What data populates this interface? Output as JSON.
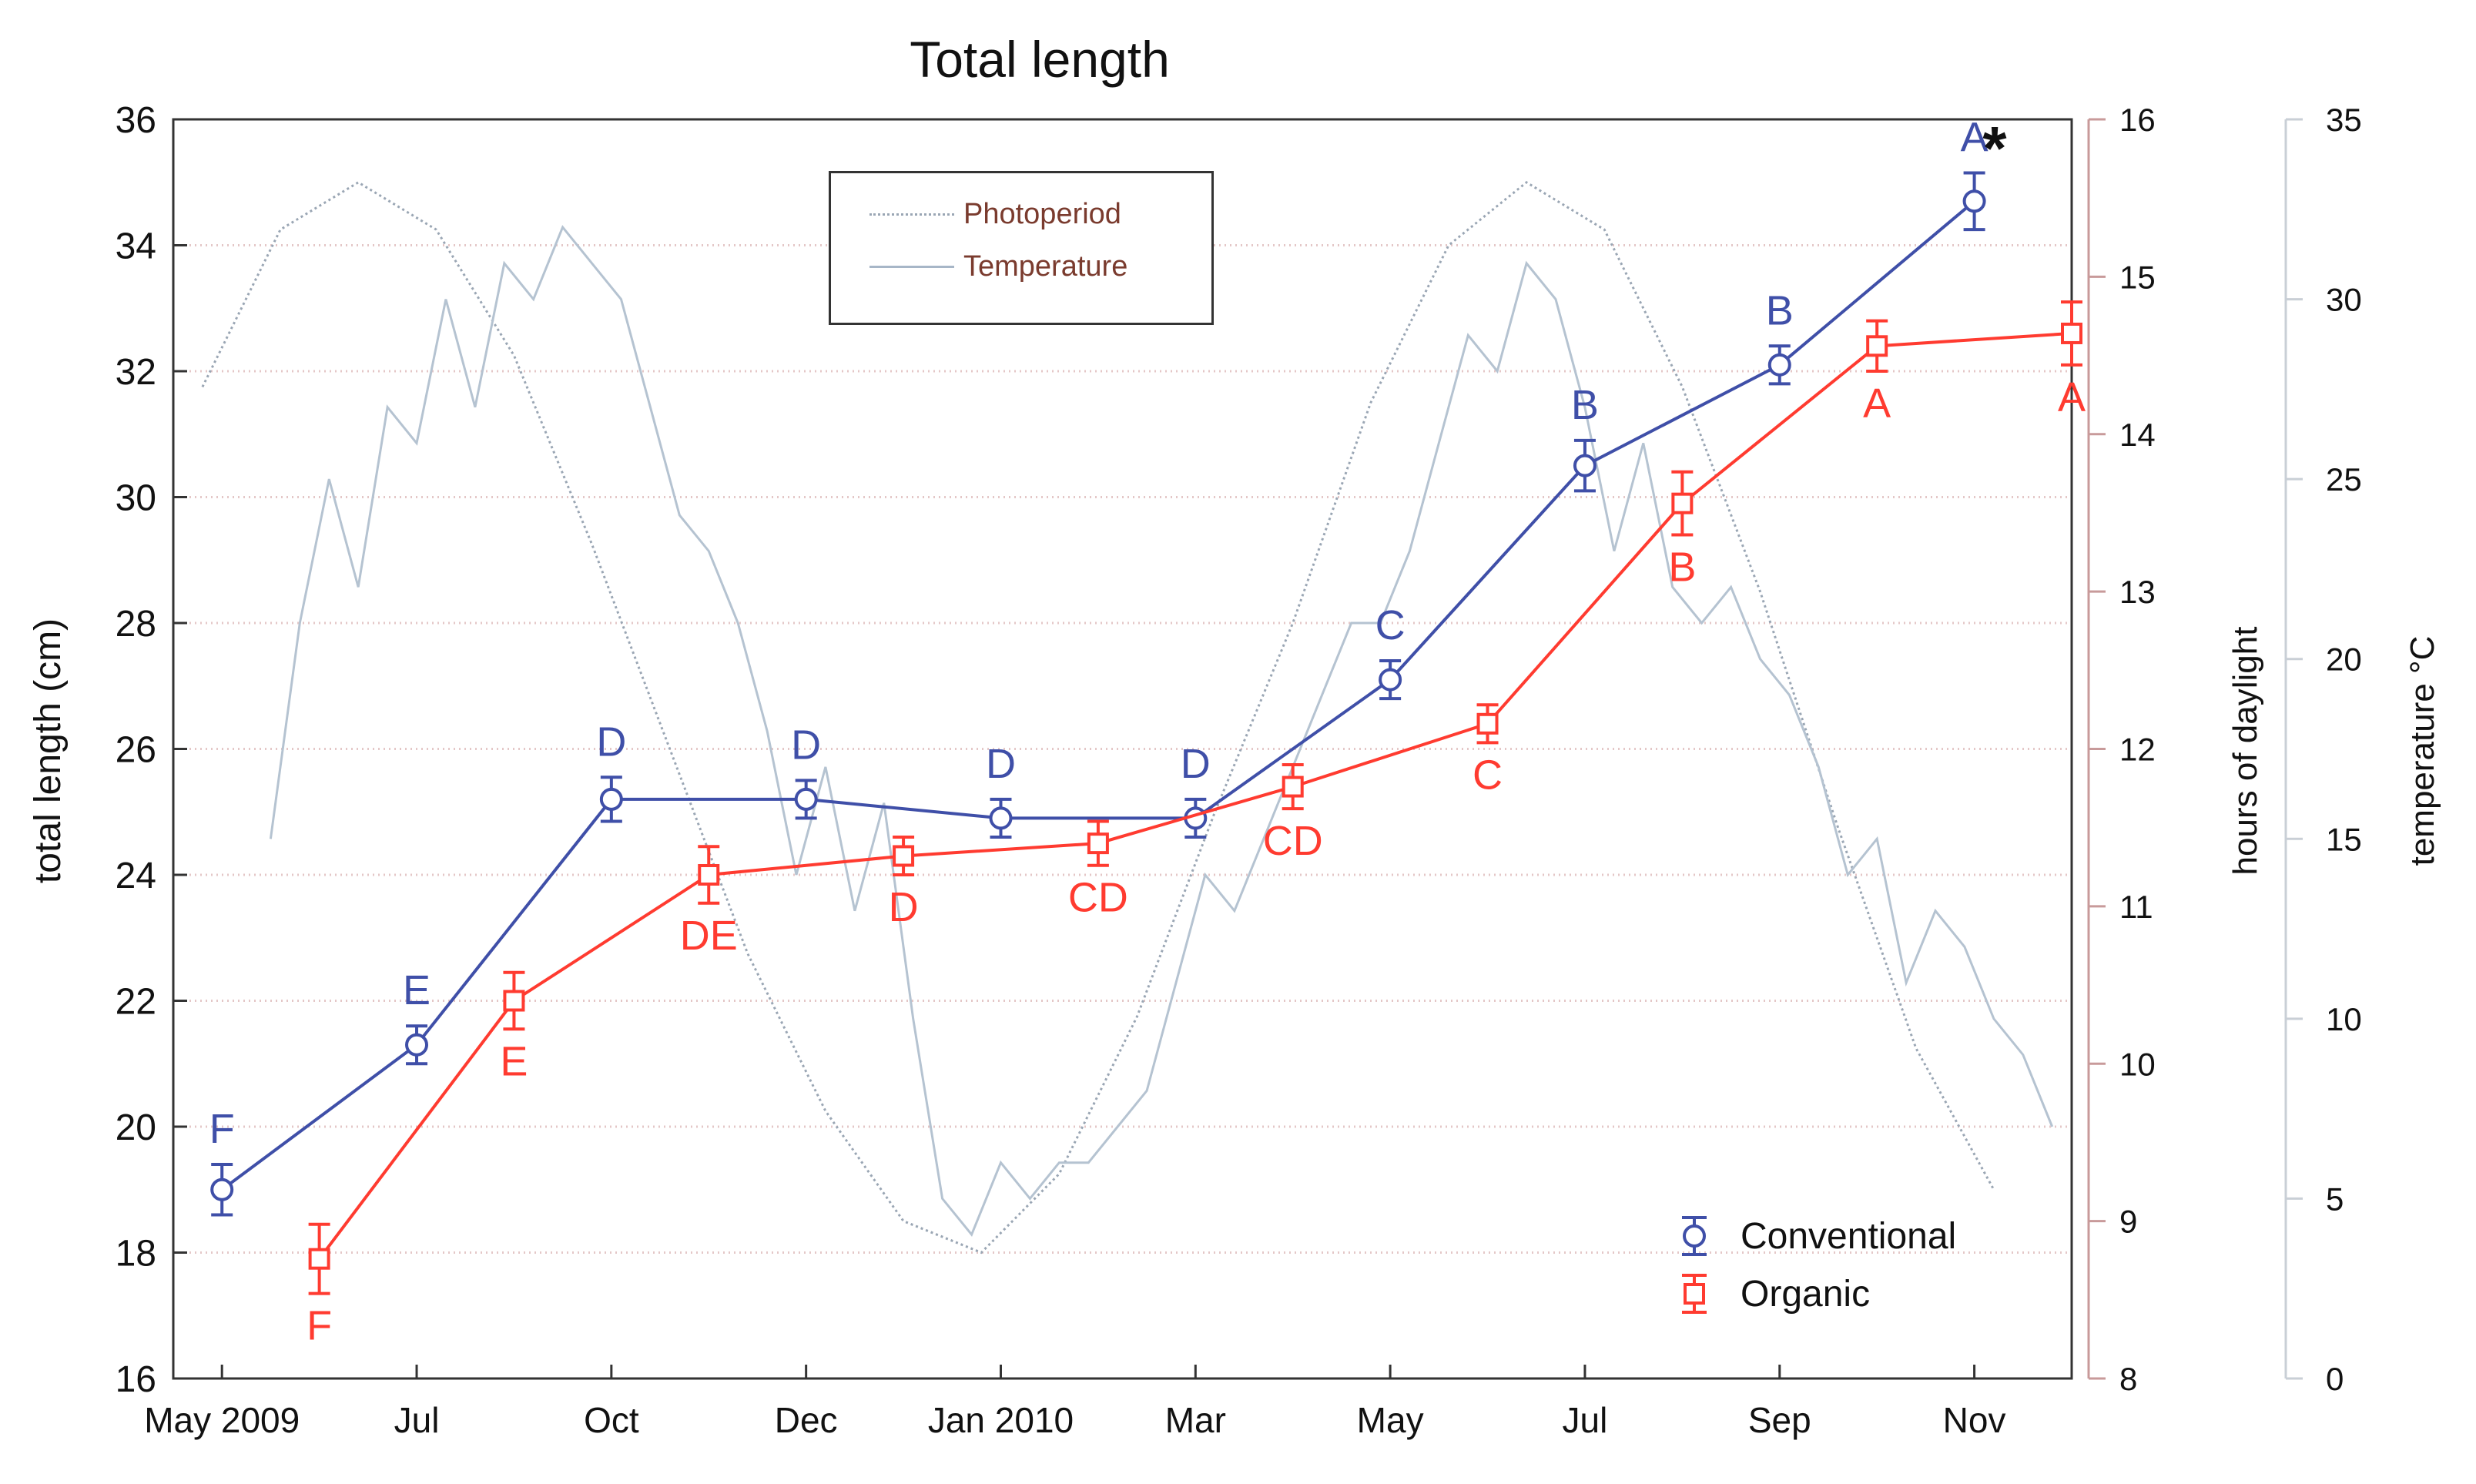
{
  "chart_data": {
    "type": "line",
    "title": "Total length",
    "ylabel": "total length (cm)",
    "ylabel_right1": "hours of daylight",
    "ylabel_right2": "temperature °C",
    "ylim": [
      16,
      36
    ],
    "ylim_right1": [
      8,
      16
    ],
    "ylim_right2": [
      0,
      35
    ],
    "yticks": [
      "16",
      "18",
      "20",
      "22",
      "24",
      "26",
      "28",
      "30",
      "32",
      "34",
      "36"
    ],
    "yticks_right1": [
      "8",
      "9",
      "10",
      "11",
      "12",
      "13",
      "14",
      "15",
      "16"
    ],
    "yticks_right2": [
      "0",
      "5",
      "10",
      "15",
      "20",
      "25",
      "30",
      "35"
    ],
    "xlim": [
      0,
      19.5
    ],
    "xticks": [
      {
        "label": "May 2009",
        "x": 0.5
      },
      {
        "label": "Jul",
        "x": 2.5
      },
      {
        "label": "Oct",
        "x": 4.5
      },
      {
        "label": "Dec",
        "x": 6.5
      },
      {
        "label": "Jan 2010",
        "x": 8.5
      },
      {
        "label": "Mar",
        "x": 10.5
      },
      {
        "label": "May",
        "x": 12.5
      },
      {
        "label": "Jul",
        "x": 14.5
      },
      {
        "label": "Sep",
        "x": 16.5
      },
      {
        "label": "Nov",
        "x": 18.5
      }
    ],
    "grid": true,
    "annotation": "*",
    "series": [
      {
        "name": "Conventional",
        "color": "#3f4fa8",
        "marker": "diamond",
        "x": [
          0.5,
          2.5,
          4.5,
          6.5,
          8.5,
          10.5,
          12.5,
          14.5,
          16.5,
          18.5
        ],
        "values": [
          19.0,
          21.3,
          25.2,
          25.2,
          24.9,
          24.9,
          27.1,
          30.5,
          32.1,
          34.7
        ],
        "errors": [
          0.4,
          0.3,
          0.35,
          0.3,
          0.3,
          0.3,
          0.3,
          0.4,
          0.3,
          0.45
        ],
        "letters": [
          "F",
          "E",
          "D",
          "D",
          "D",
          "D",
          "C",
          "B",
          "B",
          "A"
        ]
      },
      {
        "name": "Organic",
        "color": "#ff3b30",
        "marker": "square",
        "x": [
          1.5,
          3.5,
          5.5,
          7.5,
          9.5,
          11.5,
          13.5,
          15.5,
          17.5,
          19.5
        ],
        "values": [
          17.9,
          22.0,
          24.0,
          24.3,
          24.5,
          25.4,
          26.4,
          29.9,
          32.4,
          32.6
        ],
        "errors": [
          0.55,
          0.45,
          0.45,
          0.3,
          0.35,
          0.35,
          0.3,
          0.5,
          0.4,
          0.5
        ],
        "letters": [
          "F",
          "E",
          "DE",
          "D",
          "CD",
          "CD",
          "C",
          "B",
          "A",
          "A"
        ]
      }
    ],
    "background_series": [
      {
        "name": "Photoperiod",
        "axis": "hours of daylight",
        "style": "dotted",
        "x": [
          0.3,
          1.1,
          1.9,
          2.7,
          3.5,
          4.3,
          5.1,
          5.9,
          6.7,
          7.5,
          8.3,
          9.1,
          9.9,
          10.7,
          11.5,
          12.3,
          13.1,
          13.9,
          14.7,
          15.5,
          16.3,
          17.1,
          17.9,
          18.7
        ],
        "values": [
          14.3,
          15.3,
          15.6,
          15.3,
          14.5,
          13.3,
          12.0,
          10.7,
          9.7,
          9.0,
          8.8,
          9.3,
          10.3,
          11.6,
          12.8,
          14.2,
          15.2,
          15.6,
          15.3,
          14.3,
          13.0,
          11.5,
          10.1,
          9.2
        ]
      },
      {
        "name": "Temperature",
        "axis": "temperature °C",
        "style": "solid",
        "x": [
          1.0,
          1.3,
          1.6,
          1.9,
          2.2,
          2.5,
          2.8,
          3.1,
          3.4,
          3.7,
          4.0,
          4.3,
          4.6,
          4.9,
          5.2,
          5.5,
          5.8,
          6.1,
          6.4,
          6.7,
          7.0,
          7.3,
          7.6,
          7.9,
          8.2,
          8.5,
          8.8,
          9.1,
          9.4,
          9.7,
          10.0,
          10.3,
          10.6,
          10.9,
          11.2,
          11.5,
          11.8,
          12.1,
          12.4,
          12.7,
          13.0,
          13.3,
          13.6,
          13.9,
          14.2,
          14.5,
          14.8,
          15.1,
          15.4,
          15.7,
          16.0,
          16.3,
          16.6,
          16.9,
          17.2,
          17.5,
          17.8,
          18.1,
          18.4,
          18.7,
          19.0,
          19.3
        ],
        "values": [
          15,
          21,
          25,
          22,
          27,
          26,
          30,
          27,
          31,
          30,
          32,
          31,
          30,
          27,
          24,
          23,
          21,
          18,
          14,
          17,
          13,
          16,
          10,
          5,
          4,
          6,
          5,
          6,
          6,
          7,
          8,
          11,
          14,
          13,
          15,
          17,
          19,
          21,
          21,
          23,
          26,
          29,
          28,
          31,
          30,
          27,
          23,
          26,
          22,
          21,
          22,
          20,
          19,
          17,
          14,
          15,
          11,
          13,
          12,
          10,
          9,
          7
        ]
      }
    ]
  },
  "legend": {
    "photoperiod_label": "Photoperiod",
    "temperature_label": "Temperature",
    "conventional_label": "Conventional",
    "organic_label": "Organic"
  }
}
